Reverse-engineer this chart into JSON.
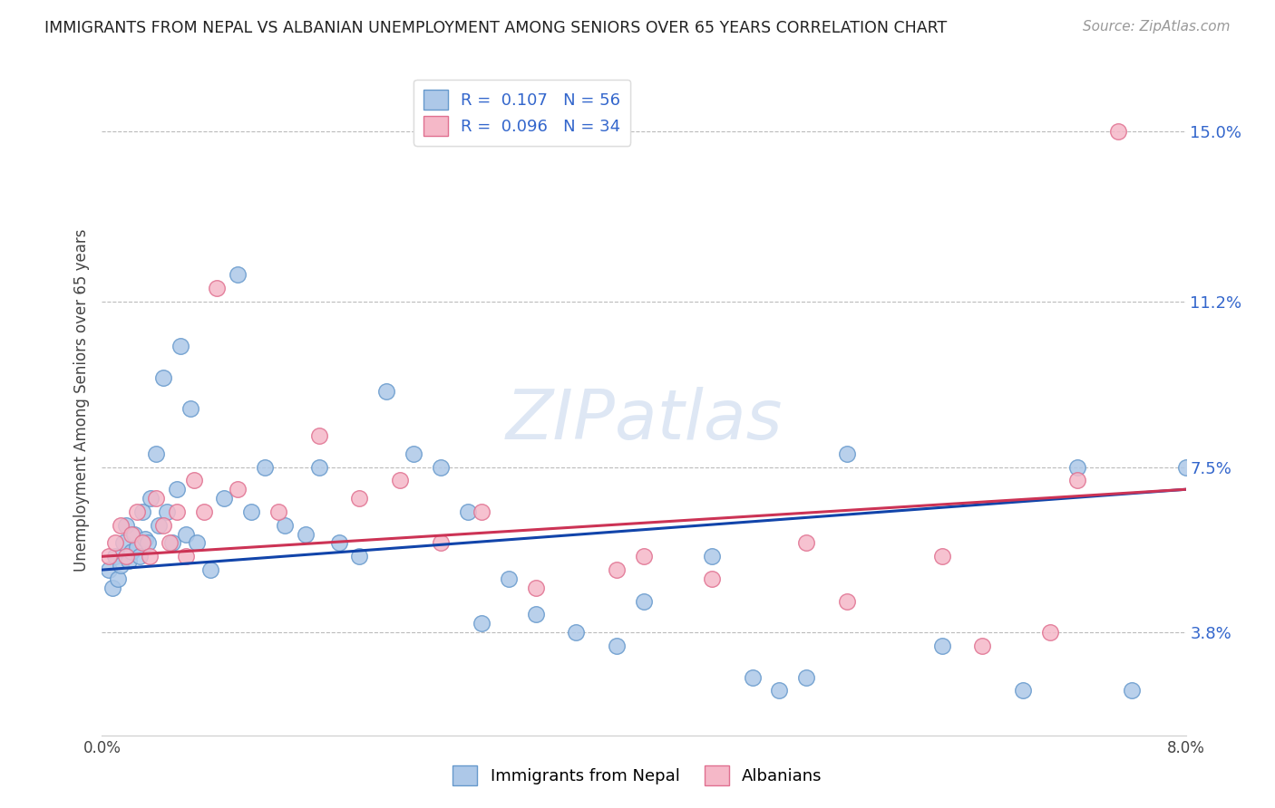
{
  "title": "IMMIGRANTS FROM NEPAL VS ALBANIAN UNEMPLOYMENT AMONG SENIORS OVER 65 YEARS CORRELATION CHART",
  "source": "Source: ZipAtlas.com",
  "ylabel": "Unemployment Among Seniors over 65 years",
  "legend_labels": [
    "Immigrants from Nepal",
    "Albanians"
  ],
  "series1_label": "Immigrants from Nepal",
  "series2_label": "Albanians",
  "r1": "0.107",
  "n1": "56",
  "r2": "0.096",
  "n2": "34",
  "xmin": 0.0,
  "xmax": 8.0,
  "ymin": 1.5,
  "ymax": 16.5,
  "yticks": [
    3.8,
    7.5,
    11.2,
    15.0
  ],
  "xticks": [
    0.0,
    1.0,
    2.0,
    3.0,
    4.0,
    5.0,
    6.0,
    7.0,
    8.0
  ],
  "xtick_labels": [
    "0.0%",
    "",
    "",
    "",
    "",
    "",
    "",
    "",
    "8.0%"
  ],
  "ytick_labels": [
    "3.8%",
    "7.5%",
    "11.2%",
    "15.0%"
  ],
  "blue_color": "#adc8e8",
  "pink_color": "#f5b8c8",
  "blue_edge": "#6699cc",
  "pink_edge": "#e07090",
  "line_blue": "#1144aa",
  "line_pink": "#cc3355",
  "background": "#ffffff",
  "watermark": "ZIPatlas",
  "series1_x": [
    0.05,
    0.08,
    0.1,
    0.12,
    0.14,
    0.16,
    0.18,
    0.2,
    0.22,
    0.24,
    0.26,
    0.28,
    0.3,
    0.32,
    0.34,
    0.36,
    0.4,
    0.42,
    0.45,
    0.48,
    0.52,
    0.55,
    0.58,
    0.62,
    0.65,
    0.7,
    0.8,
    0.9,
    1.0,
    1.1,
    1.2,
    1.35,
    1.5,
    1.6,
    1.75,
    1.9,
    2.1,
    2.3,
    2.5,
    2.7,
    2.8,
    3.0,
    3.2,
    3.5,
    3.8,
    4.0,
    4.5,
    4.8,
    5.0,
    5.2,
    5.5,
    6.2,
    6.8,
    7.2,
    7.6,
    8.0
  ],
  "series1_y": [
    5.2,
    4.8,
    5.5,
    5.0,
    5.3,
    5.8,
    6.2,
    5.4,
    5.6,
    6.0,
    5.7,
    5.5,
    6.5,
    5.9,
    5.8,
    6.8,
    7.8,
    6.2,
    9.5,
    6.5,
    5.8,
    7.0,
    10.2,
    6.0,
    8.8,
    5.8,
    5.2,
    6.8,
    11.8,
    6.5,
    7.5,
    6.2,
    6.0,
    7.5,
    5.8,
    5.5,
    9.2,
    7.8,
    7.5,
    6.5,
    4.0,
    5.0,
    4.2,
    3.8,
    3.5,
    4.5,
    5.5,
    2.8,
    2.5,
    2.8,
    7.8,
    3.5,
    2.5,
    7.5,
    2.5,
    7.5
  ],
  "series2_x": [
    0.05,
    0.1,
    0.14,
    0.18,
    0.22,
    0.26,
    0.3,
    0.35,
    0.4,
    0.45,
    0.5,
    0.55,
    0.62,
    0.68,
    0.75,
    0.85,
    1.0,
    1.3,
    1.6,
    1.9,
    2.2,
    2.5,
    2.8,
    3.2,
    3.8,
    4.0,
    4.5,
    5.2,
    5.5,
    6.2,
    6.5,
    7.0,
    7.2,
    7.5
  ],
  "series2_y": [
    5.5,
    5.8,
    6.2,
    5.5,
    6.0,
    6.5,
    5.8,
    5.5,
    6.8,
    6.2,
    5.8,
    6.5,
    5.5,
    7.2,
    6.5,
    11.5,
    7.0,
    6.5,
    8.2,
    6.8,
    7.2,
    5.8,
    6.5,
    4.8,
    5.2,
    5.5,
    5.0,
    5.8,
    4.5,
    5.5,
    3.5,
    3.8,
    7.2,
    15.0
  ],
  "trendline1_x0": 0.0,
  "trendline1_x1": 8.0,
  "trendline1_y0": 5.2,
  "trendline1_y1": 7.0,
  "trendline2_x0": 0.0,
  "trendline2_x1": 8.0,
  "trendline2_y0": 5.5,
  "trendline2_y1": 7.0
}
